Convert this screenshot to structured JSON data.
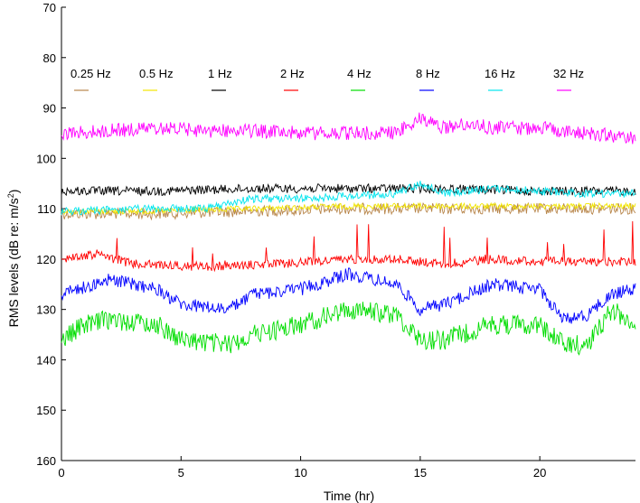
{
  "chart_data": {
    "type": "line",
    "title": "",
    "xlabel": "Time (hr)",
    "ylabel_parts": {
      "pre": "RMS levels (dB re: m/s",
      "sup": "2",
      "post": ")"
    },
    "xlim": [
      0,
      24
    ],
    "ylim": [
      160,
      70
    ],
    "y_inverted": true,
    "x_ticks": [
      0,
      5,
      10,
      15,
      20
    ],
    "y_ticks": [
      70,
      80,
      90,
      100,
      110,
      120,
      130,
      140,
      150,
      160
    ],
    "grid": false,
    "legend_placement": "top, single row",
    "series": [
      {
        "name": "0.25 Hz",
        "color": "#b8864b",
        "noise": 1.1,
        "spikes": 0,
        "keys": [
          [
            0,
            111
          ],
          [
            4,
            111
          ],
          [
            8,
            110.5
          ],
          [
            12,
            110
          ],
          [
            16,
            110
          ],
          [
            20,
            110
          ],
          [
            24,
            110
          ]
        ]
      },
      {
        "name": "0.5 Hz",
        "color": "#f2e600",
        "noise": 0.6,
        "spikes": 0,
        "keys": [
          [
            0,
            110.5
          ],
          [
            4,
            110.5
          ],
          [
            8,
            110
          ],
          [
            12,
            109.5
          ],
          [
            16,
            109.5
          ],
          [
            20,
            109.5
          ],
          [
            24,
            109.5
          ]
        ]
      },
      {
        "name": "1 Hz",
        "color": "#000000",
        "noise": 0.9,
        "spikes": 0,
        "keys": [
          [
            0,
            106.5
          ],
          [
            4,
            106.5
          ],
          [
            8,
            106
          ],
          [
            12,
            106
          ],
          [
            16,
            106
          ],
          [
            20,
            106.5
          ],
          [
            24,
            106.5
          ]
        ]
      },
      {
        "name": "2 Hz",
        "color": "#ff0000",
        "noise": 0.9,
        "spikes": 0.05,
        "keys": [
          [
            0,
            120
          ],
          [
            1.5,
            119
          ],
          [
            3,
            121
          ],
          [
            6,
            121.5
          ],
          [
            9,
            121
          ],
          [
            12,
            120
          ],
          [
            14,
            120
          ],
          [
            16,
            121
          ],
          [
            18,
            120
          ],
          [
            20,
            120.5
          ],
          [
            24,
            120.5
          ]
        ]
      },
      {
        "name": "4 Hz",
        "color": "#00dd00",
        "noise": 2.0,
        "spikes": 0,
        "keys": [
          [
            0,
            136
          ],
          [
            1,
            133
          ],
          [
            2,
            132
          ],
          [
            4,
            133
          ],
          [
            5,
            136
          ],
          [
            7,
            137
          ],
          [
            8,
            135
          ],
          [
            10,
            133
          ],
          [
            12,
            130
          ],
          [
            14,
            131
          ],
          [
            15,
            136
          ],
          [
            16,
            136
          ],
          [
            18,
            133
          ],
          [
            20,
            133
          ],
          [
            21,
            137
          ],
          [
            22,
            137
          ],
          [
            23,
            130
          ],
          [
            24,
            133
          ]
        ]
      },
      {
        "name": "8 Hz",
        "color": "#0000ff",
        "noise": 1.3,
        "spikes": 0,
        "keys": [
          [
            0,
            127
          ],
          [
            2,
            124
          ],
          [
            4,
            126
          ],
          [
            5,
            129
          ],
          [
            7,
            130
          ],
          [
            8,
            127
          ],
          [
            10,
            126
          ],
          [
            12,
            123
          ],
          [
            14,
            125
          ],
          [
            15,
            130
          ],
          [
            16,
            129
          ],
          [
            18,
            125
          ],
          [
            20,
            126
          ],
          [
            21,
            132
          ],
          [
            22,
            131
          ],
          [
            23,
            127
          ],
          [
            24,
            126
          ]
        ]
      },
      {
        "name": "16 Hz",
        "color": "#00e5ee",
        "noise": 0.8,
        "spikes": 0,
        "keys": [
          [
            0,
            110.5
          ],
          [
            4,
            110
          ],
          [
            6,
            110
          ],
          [
            8,
            108
          ],
          [
            10,
            108
          ],
          [
            12,
            107.5
          ],
          [
            14,
            107
          ],
          [
            15,
            105
          ],
          [
            16,
            107
          ],
          [
            18,
            106
          ],
          [
            20,
            106.5
          ],
          [
            22,
            107
          ],
          [
            24,
            107
          ]
        ]
      },
      {
        "name": "32 Hz",
        "color": "#ff00ff",
        "noise": 1.4,
        "spikes": 0,
        "keys": [
          [
            0,
            95
          ],
          [
            4,
            94
          ],
          [
            6,
            94.5
          ],
          [
            8,
            94.5
          ],
          [
            10,
            95
          ],
          [
            12,
            95
          ],
          [
            14,
            95
          ],
          [
            15,
            92
          ],
          [
            16,
            94
          ],
          [
            17,
            93
          ],
          [
            18,
            94
          ],
          [
            20,
            94
          ],
          [
            22,
            95
          ],
          [
            24,
            96
          ]
        ]
      }
    ]
  }
}
